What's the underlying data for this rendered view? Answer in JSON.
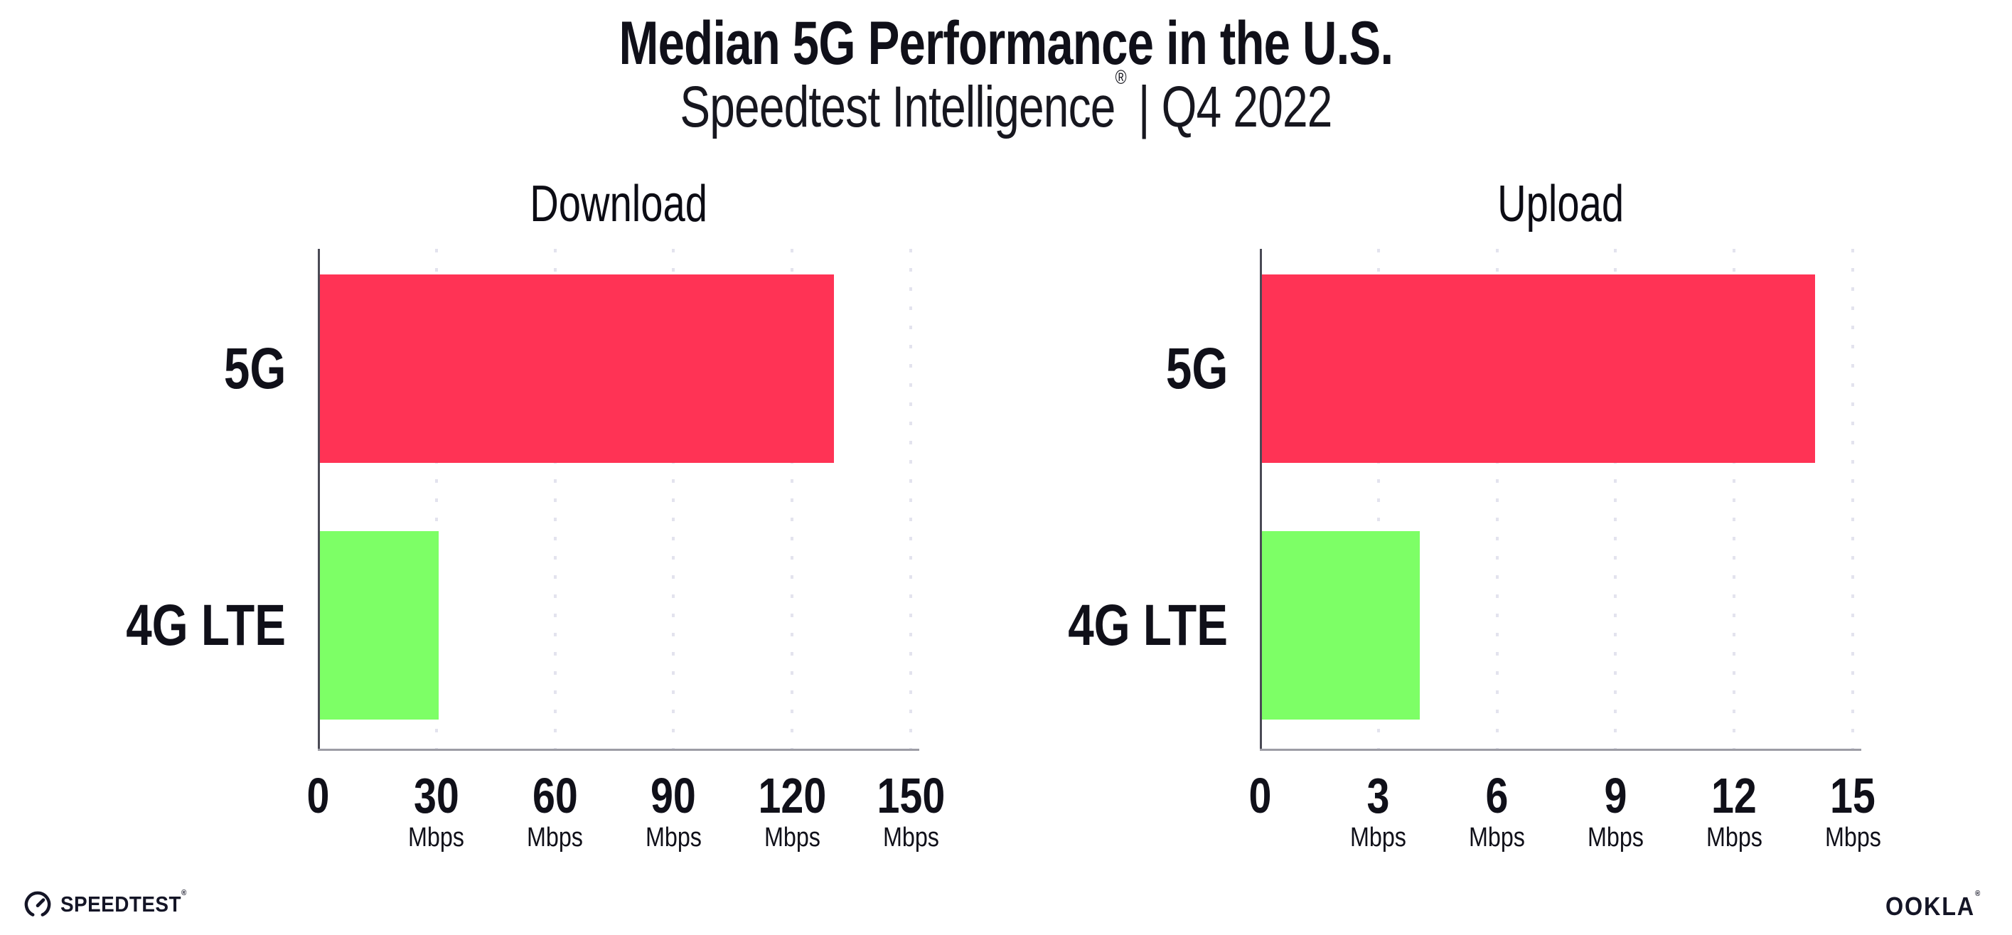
{
  "page": {
    "title": "Median 5G Performance in the U.S.",
    "subtitle_main": "Speedtest Intelligence",
    "subtitle_reg_mark": "®",
    "subtitle_suffix": " | Q4 2022"
  },
  "colors": {
    "bar_5g": "#ff3355",
    "bar_4g_lte": "#7dff66",
    "text": "#101019",
    "y_axis": "#4a4a55",
    "x_axis": "#9d9da5",
    "gridline_dots": "#e3e3ee"
  },
  "chart_data": [
    {
      "type": "bar",
      "orientation": "horizontal",
      "title": "Download",
      "categories": [
        "5G",
        "4G LTE"
      ],
      "values": [
        130,
        30
      ],
      "unit": "Mbps",
      "xlim": [
        0,
        150
      ],
      "xticks": [
        0,
        30,
        60,
        90,
        120,
        150
      ],
      "grid": "vertical-dotted",
      "legend": "none",
      "bar_colors": [
        "#ff3355",
        "#7dff66"
      ]
    },
    {
      "type": "bar",
      "orientation": "horizontal",
      "title": "Upload",
      "categories": [
        "5G",
        "4G LTE"
      ],
      "values": [
        14,
        4
      ],
      "unit": "Mbps",
      "xlim": [
        0,
        15
      ],
      "xticks": [
        0,
        3,
        6,
        9,
        12,
        15
      ],
      "grid": "vertical-dotted",
      "legend": "none",
      "bar_colors": [
        "#ff3355",
        "#7dff66"
      ]
    }
  ],
  "footer": {
    "speedtest_logo_text": "SPEEDTEST",
    "speedtest_trademark": "®",
    "ookla_logo_text": "OOKLA",
    "ookla_trademark": "®"
  }
}
